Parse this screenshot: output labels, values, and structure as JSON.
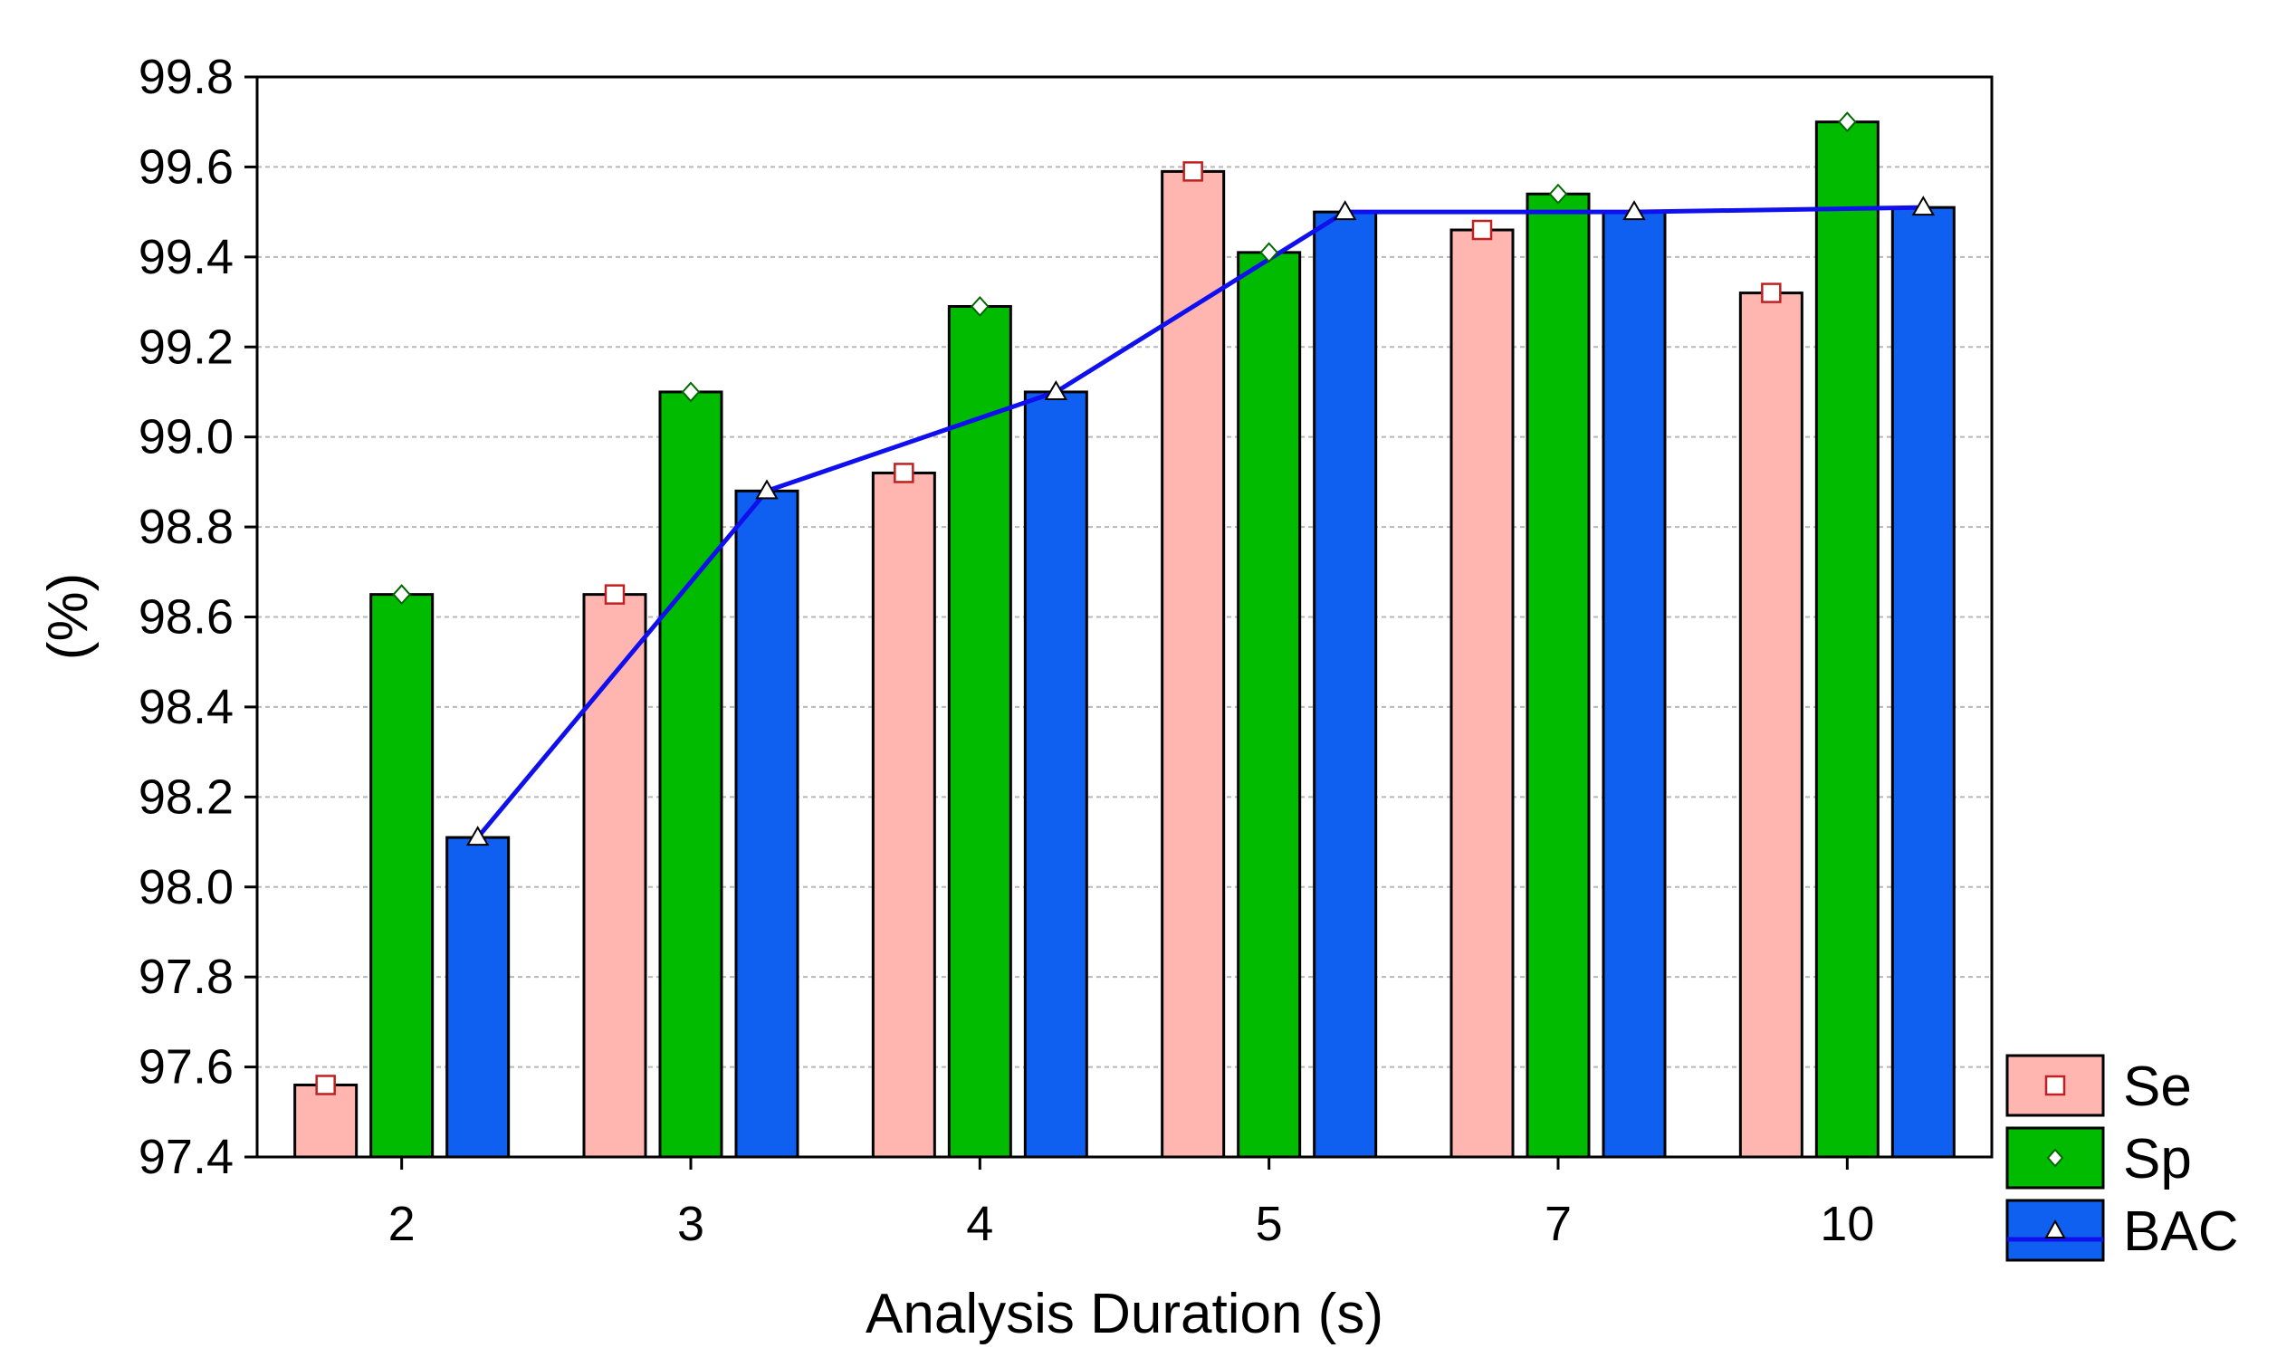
{
  "chart_data": {
    "type": "bar",
    "title": "",
    "xlabel": "Analysis Duration (s)",
    "ylabel": "(%)",
    "ylim": [
      97.4,
      99.8
    ],
    "yticks": [
      "99.8",
      "99.6",
      "99.4",
      "99.2",
      "99.0",
      "98.8",
      "98.6",
      "98.4",
      "98.2",
      "98.0",
      "97.8",
      "97.6",
      "97.4"
    ],
    "yticks_values": [
      99.8,
      99.6,
      99.4,
      99.2,
      99.0,
      98.8,
      98.6,
      98.4,
      98.2,
      98.0,
      97.8,
      97.6,
      97.4
    ],
    "grid": true,
    "legend_position": "bottom-right outside",
    "categories": [
      "2",
      "3",
      "4",
      "5",
      "7",
      "10"
    ],
    "series": [
      {
        "name": "Se",
        "type": "bar",
        "marker": "square",
        "color": "#FFB6B0",
        "values": [
          97.56,
          98.65,
          98.92,
          99.59,
          99.46,
          99.32
        ]
      },
      {
        "name": "Sp",
        "type": "bar",
        "marker": "diamond",
        "color": "#00BB00",
        "values": [
          98.65,
          99.1,
          99.29,
          99.41,
          99.54,
          99.7
        ]
      },
      {
        "name": "BAC",
        "type": "bar+line",
        "marker": "triangle",
        "color": "#0F5FF0",
        "line_color": "#1010EE",
        "values": [
          98.11,
          98.88,
          99.1,
          99.5,
          99.5,
          99.51
        ]
      }
    ]
  }
}
